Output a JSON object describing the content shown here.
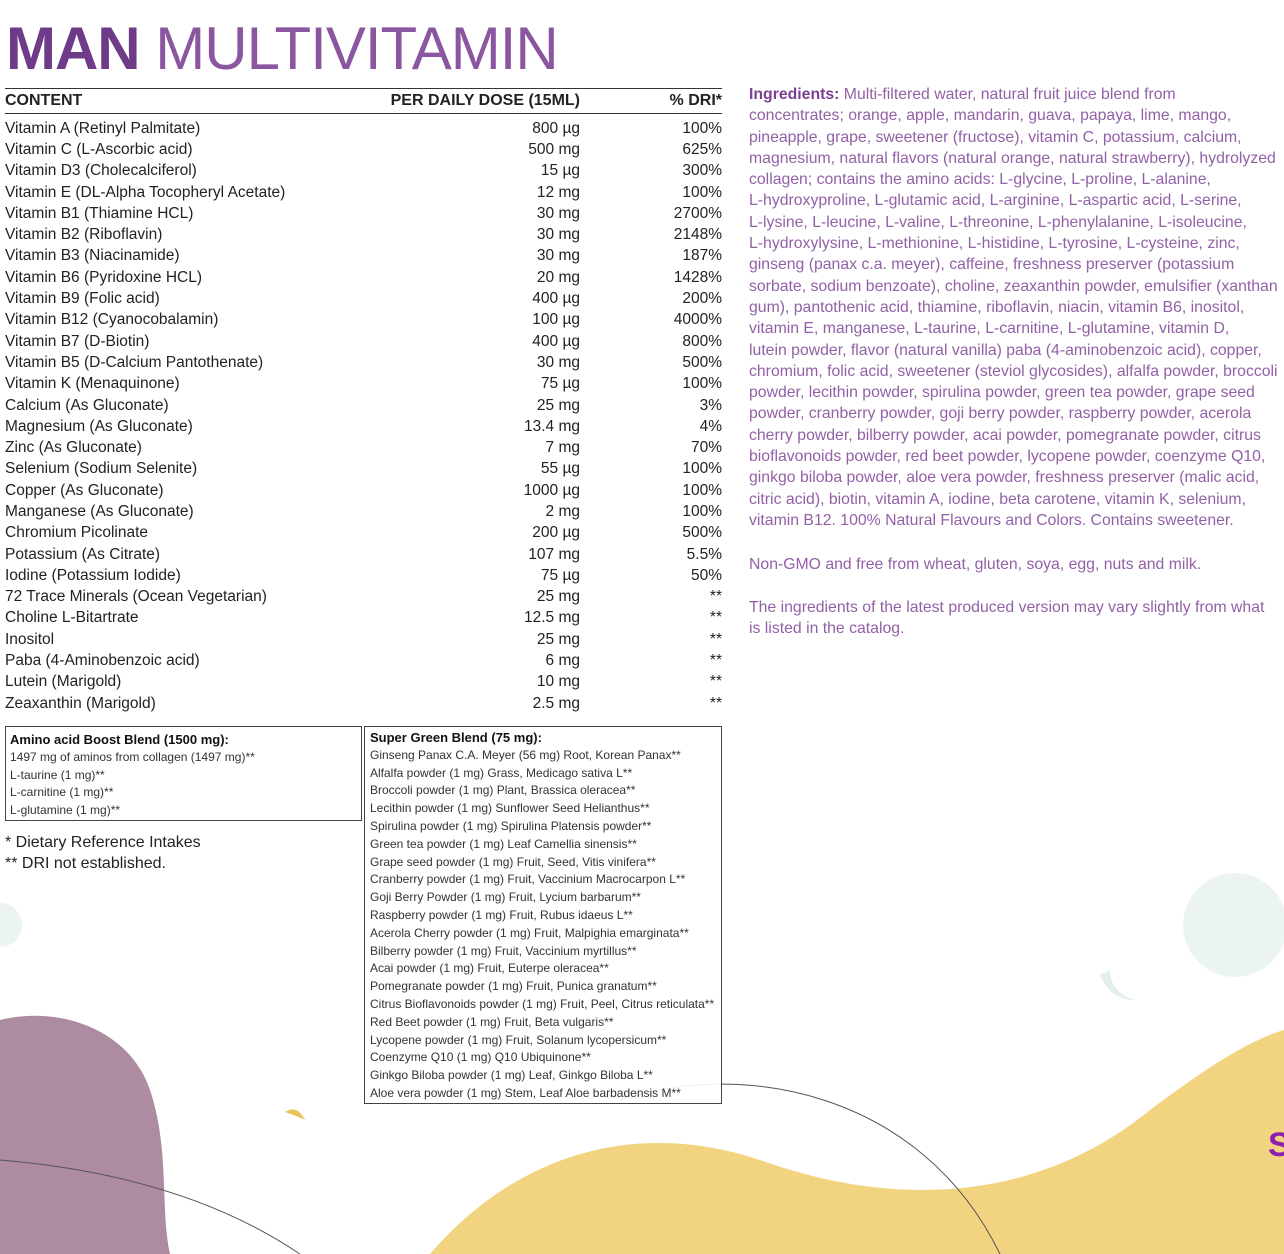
{
  "title": {
    "part1": "MAN",
    "part2": " MULTIVITAMIN"
  },
  "colors": {
    "title": "#7d4a93",
    "ingredients_text": "#9360a6",
    "blob_mauve": "#ad8ba0",
    "wave_yellow": "#f2d37f",
    "circle_teal": "#ecf3f3"
  },
  "table": {
    "headers": [
      "CONTENT",
      "PER DAILY DOSE (15ML)",
      "% DRI*"
    ],
    "rows": [
      [
        "Vitamin A (Retinyl Palmitate)",
        "800 µg",
        "100%"
      ],
      [
        "Vitamin C (L-Ascorbic acid)",
        "500 mg",
        "625%"
      ],
      [
        "Vitamin D3 (Cholecalciferol)",
        "15 µg",
        "300%"
      ],
      [
        "Vitamin E (DL-Alpha Tocopheryl Acetate)",
        "12 mg",
        "100%"
      ],
      [
        "Vitamin B1 (Thiamine HCL)",
        "30 mg",
        "2700%"
      ],
      [
        "Vitamin B2 (Riboflavin)",
        "30 mg",
        "2148%"
      ],
      [
        "Vitamin B3 (Niacinamide)",
        "30 mg",
        "187%"
      ],
      [
        "Vitamin B6 (Pyridoxine HCL)",
        "20 mg",
        "1428%"
      ],
      [
        "Vitamin B9 (Folic acid)",
        "400 µg",
        "200%"
      ],
      [
        "Vitamin B12 (Cyanocobalamin)",
        "100 µg",
        "4000%"
      ],
      [
        "Vitamin B7 (D-Biotin)",
        "400 µg",
        "800%"
      ],
      [
        "Vitamin B5 (D-Calcium Pantothenate)",
        "30 mg",
        "500%"
      ],
      [
        "Vitamin K (Menaquinone)",
        "75  µg",
        "100%"
      ],
      [
        "Calcium (As Gluconate)",
        "25 mg",
        "3%"
      ],
      [
        "Magnesium (As Gluconate)",
        "13.4 mg",
        "4%"
      ],
      [
        "Zinc (As Gluconate)",
        "7 mg",
        "70%"
      ],
      [
        "Selenium (Sodium Selenite)",
        "55 µg",
        "100%"
      ],
      [
        "Copper (As Gluconate)",
        "1000 µg",
        "100%"
      ],
      [
        "Manganese (As Gluconate)",
        "2 mg",
        "100%"
      ],
      [
        "Chromium Picolinate",
        "200 µg",
        "500%"
      ],
      [
        "Potassium (As Citrate)",
        "107 mg",
        "5.5%"
      ],
      [
        "Iodine (Potassium Iodide)",
        "75 µg",
        "50%"
      ],
      [
        "72 Trace Minerals (Ocean Vegetarian)",
        "25 mg",
        "**"
      ],
      [
        "Choline L-Bitartrate",
        "12.5 mg",
        "**"
      ],
      [
        "Inositol",
        "25 mg",
        "**"
      ],
      [
        "Paba (4-Aminobenzoic acid)",
        "6 mg",
        "**"
      ],
      [
        "Lutein (Marigold)",
        "10 mg",
        "**"
      ],
      [
        "Zeaxanthin (Marigold)",
        "2.5 mg",
        "**"
      ]
    ]
  },
  "amino_blend": {
    "title": "Amino acid Boost Blend (1500 mg):",
    "items": [
      "1497 mg of aminos from collagen (1497 mg)**",
      "L-taurine (1 mg)**",
      "L-carnitine (1 mg)**",
      "L-glutamine (1 mg)**"
    ]
  },
  "green_blend": {
    "title": "Super Green Blend (75 mg):",
    "items": [
      "Ginseng Panax C.A. Meyer (56 mg) Root, Korean Panax**",
      "Alfalfa powder (1 mg) Grass, Medicago sativa L**",
      "Broccoli powder (1 mg) Plant, Brassica oleracea**",
      "Lecithin powder (1 mg) Sunflower Seed Helianthus**",
      "Spirulina powder (1 mg) Spirulina Platensis powder**",
      "Green tea powder (1 mg) Leaf Camellia sinensis**",
      "Grape seed powder (1 mg) Fruit, Seed, Vitis vinifera**",
      "Cranberry powder (1 mg) Fruit, Vaccinium Macrocarpon L**",
      "Goji Berry Powder (1 mg) Fruit, Lycium barbarum**",
      "Raspberry powder (1 mg) Fruit, Rubus idaeus L**",
      "Acerola Cherry powder (1 mg) Fruit, Malpighia emarginata**",
      "Bilberry powder (1 mg) Fruit, Vaccinium myrtillus**",
      "Acai powder (1 mg) Fruit, Euterpe oleracea**",
      "Pomegranate powder (1 mg) Fruit, Punica granatum**",
      "Citrus Bioflavonoids powder (1 mg) Fruit, Peel, Citrus reticulata**",
      "Red Beet powder (1 mg) Fruit, Beta vulgaris**",
      "Lycopene powder (1 mg) Fruit, Solanum lycopersicum**",
      "Coenzyme Q10 (1 mg) Q10 Ubiquinone**",
      "Ginkgo Biloba powder (1 mg) Leaf, Ginkgo Biloba L**",
      "Aloe vera powder (1 mg) Stem, Leaf Aloe barbadensis M**"
    ]
  },
  "notes": [
    "* Dietary Reference Intakes",
    "** DRI not established."
  ],
  "ingredients": {
    "label": "Ingredients:",
    "lines": [
      " Multi-filtered water, natural fruit juice blend from",
      "concentrates; orange, apple, mandarin, guava, papaya, lime, mango,",
      "pineapple, grape, sweetener (fructose), vitamin C, potassium, calcium,",
      "magnesium, natural flavors (natural orange, natural strawberry), hydrolyzed",
      "collagen; contains the amino acids: L-glycine, L-proline, L-alanine,",
      "L-hydroxyproline, L-glutamic acid, L-arginine, L-aspartic acid, L-serine,",
      "L-lysine, L-leucine, L-valine, L-threonine, L-phenylalanine, L-isoleucine,",
      "L-hydroxylysine, L-methionine, L-histidine, L-tyrosine, L-cysteine, zinc,",
      "ginseng (panax c.a. meyer), caffeine, freshness preserver (potassium",
      "sorbate, sodium benzoate), choline, zeaxanthin powder, emulsifier (xanthan",
      "gum), pantothenic acid, thiamine, riboflavin, niacin, vitamin B6, inositol,",
      "vitamin E, manganese, L-taurine, L-carnitine, L-glutamine, vitamin D,",
      "lutein powder, flavor (natural vanilla) paba (4-aminobenzoic acid), copper,",
      "chromium, folic acid, sweetener (steviol glycosides), alfalfa powder, broccoli",
      "powder, lecithin powder, spirulina powder, green tea powder, grape seed",
      "powder, cranberry powder, goji berry powder, raspberry powder, acerola",
      "cherry powder, bilberry powder, acai powder, pomegranate powder, citrus",
      "bioflavonoids powder, red beet powder, lycopene powder, coenzyme Q10,",
      "ginkgo biloba powder, aloe vera powder, freshness preserver (malic acid,",
      "citric acid), biotin, vitamin A, iodine, beta carotene, vitamin K, selenium,",
      "vitamin B12. 100% Natural Flavours and Colors. Contains sweetener."
    ]
  },
  "non_gmo": "Non-GMO and free from wheat, gluten, soya, egg, nuts and milk.",
  "disclaimer": [
    "The ingredients of the latest produced version may vary slightly from what",
    "is listed in the catalog."
  ],
  "corner_letter": "S"
}
